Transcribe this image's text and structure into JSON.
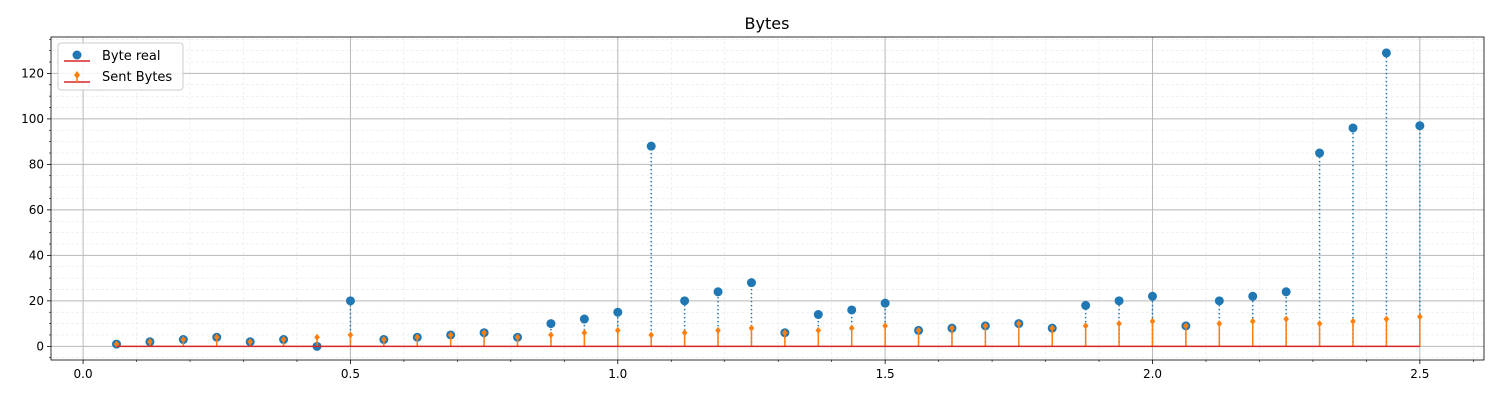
{
  "chart_data": {
    "type": "scatter",
    "title": "Bytes",
    "xlabel": "",
    "ylabel": "",
    "xlim": [
      -0.06,
      2.62
    ],
    "ylim": [
      -6,
      136
    ],
    "xticks": [
      0.0,
      0.5,
      1.0,
      1.5,
      2.0,
      2.5
    ],
    "xtick_labels": [
      "0.0",
      "0.5",
      "1.0",
      "1.5",
      "2.0",
      "2.5"
    ],
    "yticks": [
      0,
      20,
      40,
      60,
      80,
      100,
      120
    ],
    "ytick_labels": [
      "0",
      "20",
      "40",
      "60",
      "80",
      "100",
      "120"
    ],
    "grid": "major and minor",
    "legend_position": "upper-left",
    "baseline": 0,
    "x": [
      0.0625,
      0.125,
      0.1875,
      0.25,
      0.3125,
      0.375,
      0.4375,
      0.5,
      0.5625,
      0.625,
      0.6875,
      0.75,
      0.8125,
      0.875,
      0.9375,
      1.0,
      1.0625,
      1.125,
      1.1875,
      1.25,
      1.3125,
      1.375,
      1.4375,
      1.5,
      1.5625,
      1.625,
      1.6875,
      1.75,
      1.8125,
      1.875,
      1.9375,
      2.0,
      2.0625,
      2.125,
      2.1875,
      2.25,
      2.3125,
      2.375,
      2.4375,
      2.5
    ],
    "series": [
      {
        "name": "Byte real",
        "style": "stem-dotted",
        "color": "#1f77b4",
        "marker": "circle",
        "values": [
          1,
          2,
          3,
          4,
          2,
          3,
          0,
          20,
          3,
          4,
          5,
          6,
          4,
          10,
          12,
          15,
          88,
          20,
          24,
          28,
          6,
          14,
          16,
          19,
          7,
          8,
          9,
          10,
          8,
          18,
          20,
          22,
          9,
          20,
          22,
          24,
          85,
          96,
          129,
          97
        ]
      },
      {
        "name": "Sent Bytes",
        "style": "stem-solid",
        "color": "#ff7f0e",
        "marker": "diamond",
        "values": [
          1,
          2,
          3,
          4,
          2,
          3,
          4,
          5,
          3,
          4,
          5,
          6,
          4,
          5,
          6,
          7,
          5,
          6,
          7,
          8,
          6,
          7,
          8,
          9,
          7,
          8,
          9,
          10,
          8,
          9,
          10,
          11,
          9,
          10,
          11,
          12,
          10,
          11,
          12,
          13
        ]
      }
    ],
    "baseline_color": "#d62728"
  }
}
